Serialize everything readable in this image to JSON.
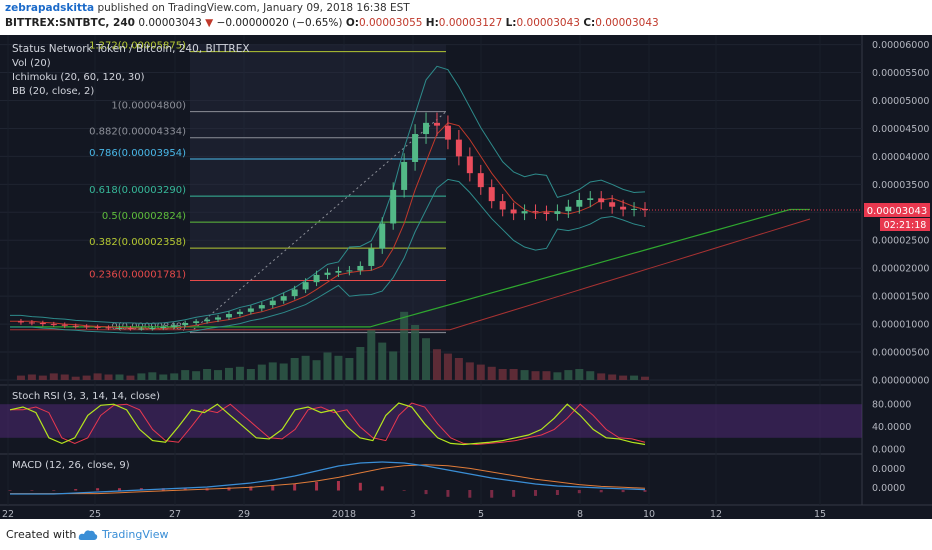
{
  "header": {
    "author": "zebrapadskitta",
    "published_text": "published on TradingView.com, January 09, 2018 16:38 EST",
    "symbol": "BITTREX:SNTBTC, 240",
    "last": "0.00003043",
    "change": "−0.00000020 (−0.65%)",
    "open_label": "O:",
    "open": "0.00003055",
    "high_label": "H:",
    "high": "0.00003127",
    "low_label": "L:",
    "low": "0.00003043",
    "close_label": "C:",
    "close": "0.00003043"
  },
  "legend": {
    "title": "Status Network Token / Bitcoin, 240, BITTREX",
    "vol": "Vol (20)",
    "ichimoku": "Ichimoku (20, 60, 120, 30)",
    "bb": "BB (20, close, 2)"
  },
  "price_axis": {
    "ticks": [
      "0.00006000",
      "0.00005500",
      "0.00005000",
      "0.00004500",
      "0.00004000",
      "0.00003500",
      "0.00003000",
      "0.00002500",
      "0.00002000",
      "0.00001500",
      "0.00001000",
      "0.00000500",
      "0.00000000"
    ],
    "tick_values": [
      6e-05,
      5.5e-05,
      5e-05,
      4.5e-05,
      4e-05,
      3.5e-05,
      3e-05,
      2.5e-05,
      2e-05,
      1.5e-05,
      1e-05,
      5e-06,
      0
    ],
    "last_price_label": "0.00003043",
    "countdown": "02:21:18"
  },
  "fib_levels": [
    {
      "label": "1.272(0.00005875)",
      "value": 5.875e-05,
      "color": "#b5c832"
    },
    {
      "label": "1(0.00004800)",
      "value": 4.8e-05,
      "color": "#8c8f98"
    },
    {
      "label": "0.882(0.00004334)",
      "value": 4.334e-05,
      "color": "#8c8f98"
    },
    {
      "label": "0.786(0.00003954)",
      "value": 3.954e-05,
      "color": "#4ab8e8"
    },
    {
      "label": "0.618(0.00003290)",
      "value": 3.29e-05,
      "color": "#37b99a"
    },
    {
      "label": "0.5(0.00002824)",
      "value": 2.824e-05,
      "color": "#5fbf3c"
    },
    {
      "label": "0.382(0.00002358)",
      "value": 2.358e-05,
      "color": "#b5c832"
    },
    {
      "label": "0.236(0.00001781)",
      "value": 1.781e-05,
      "color": "#e64a4a"
    },
    {
      "label": "0(0.00000848)",
      "value": 8.48e-06,
      "color": "#8c8f98"
    }
  ],
  "stoch_rsi": {
    "label": "Stoch RSI (3, 3, 14, 14, close)",
    "ticks": [
      "80.0000",
      "40.0000",
      "0.0000"
    ],
    "tick_values": [
      80,
      40,
      0
    ]
  },
  "macd": {
    "label": "MACD (12, 26, close, 9)",
    "ticks": [
      "0.0000",
      "0.0000"
    ]
  },
  "time_axis": {
    "labels": [
      "22",
      "25",
      "27",
      "29",
      "2018",
      "3",
      "5",
      "8",
      "10",
      "12",
      "15"
    ]
  },
  "chart_data": {
    "type": "candlestick",
    "title": "Status Network Token / Bitcoin, 240, BITTREX",
    "x_labels": [
      "22",
      "25",
      "27",
      "29",
      "2018",
      "3",
      "5",
      "8",
      "10",
      "12",
      "15"
    ],
    "ylim": [
      0,
      6.1e-05
    ],
    "close_path": [
      1.05e-05,
      1.03e-05,
      1.02e-05,
      1e-05,
      9.9e-06,
      9.7e-06,
      9.6e-06,
      9.5e-06,
      9.4e-06,
      9.3e-06,
      9.3e-06,
      9.2e-06,
      9.2e-06,
      9.3e-06,
      9.5e-06,
      9.8e-06,
      1.02e-05,
      1.05e-05,
      1.08e-05,
      1.12e-05,
      1.18e-05,
      1.22e-05,
      1.28e-05,
      1.34e-05,
      1.42e-05,
      1.5e-05,
      1.62e-05,
      1.75e-05,
      1.88e-05,
      1.92e-05,
      1.95e-05,
      1.96e-05,
      2.04e-05,
      2.35e-05,
      2.8e-05,
      3.4e-05,
      3.9e-05,
      4.4e-05,
      4.6e-05,
      4.55e-05,
      4.3e-05,
      4e-05,
      3.7e-05,
      3.45e-05,
      3.2e-05,
      3.05e-05,
      2.98e-05,
      3.02e-05,
      3e-05,
      2.97e-05,
      3.02e-05,
      3.1e-05,
      3.22e-05,
      3.25e-05,
      3.18e-05,
      3.1e-05,
      3.05e-05,
      3.06e-05,
      3.04e-05
    ],
    "volume_path": [
      0.6,
      0.4,
      0.5,
      0.4,
      0.6,
      0.5,
      0.3,
      0.4,
      0.6,
      0.5,
      0.5,
      0.4,
      0.6,
      0.7,
      0.5,
      0.6,
      0.9,
      0.8,
      1.0,
      0.9,
      1.1,
      1.2,
      1.0,
      1.4,
      1.6,
      1.5,
      2.0,
      2.2,
      1.8,
      2.5,
      2.2,
      2.0,
      3.0,
      4.6,
      3.4,
      2.6,
      6.2,
      5.0,
      3.8,
      2.8,
      2.4,
      2.0,
      1.6,
      1.4,
      1.2,
      1.0,
      1.0,
      0.9,
      0.8,
      0.8,
      0.7,
      0.9,
      1.0,
      0.8,
      0.6,
      0.5,
      0.4,
      0.4,
      0.3
    ],
    "stoch_k": [
      70,
      75,
      65,
      20,
      10,
      20,
      60,
      78,
      80,
      70,
      35,
      15,
      12,
      40,
      70,
      65,
      80,
      60,
      40,
      20,
      18,
      35,
      70,
      75,
      65,
      70,
      40,
      20,
      15,
      60,
      82,
      75,
      45,
      20,
      10,
      8,
      10,
      12,
      15,
      20,
      25,
      35,
      55,
      80,
      60,
      35,
      20,
      18,
      12,
      8
    ],
    "macd_line": [
      -0.2,
      -0.2,
      -0.2,
      -0.15,
      -0.1,
      -0.05,
      0,
      0.05,
      0.1,
      0.15,
      0.25,
      0.35,
      0.5,
      0.7,
      0.95,
      1.2,
      1.35,
      1.4,
      1.35,
      1.2,
      1.0,
      0.8,
      0.6,
      0.45,
      0.3,
      0.2,
      0.15,
      0.1,
      0.06,
      0.02
    ]
  },
  "footer": {
    "created_with": "Created with",
    "brand": "TradingView"
  }
}
